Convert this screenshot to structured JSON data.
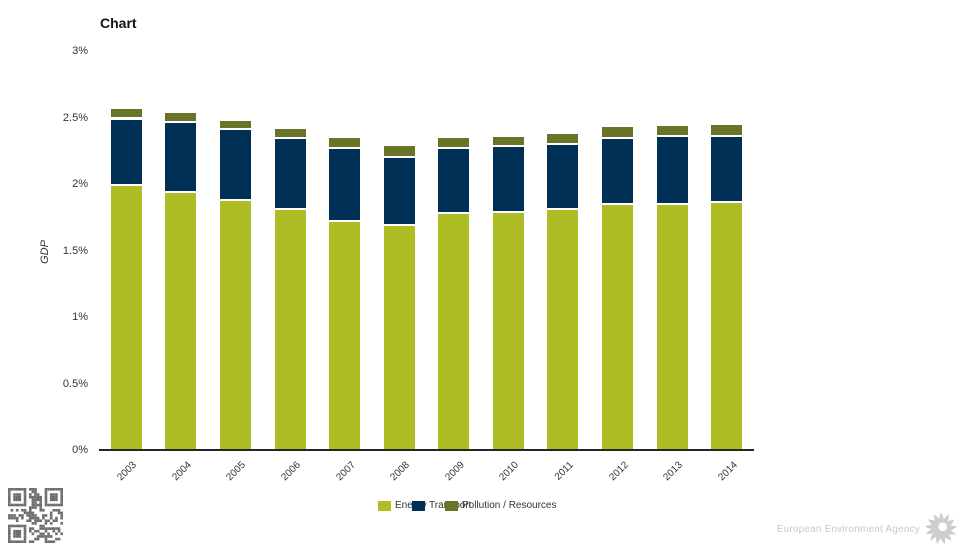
{
  "title": "Chart",
  "y_axis_title": "GDP",
  "footer": {
    "agency": "European Environment Agency"
  },
  "chart_data": {
    "type": "bar",
    "stacked": true,
    "title": "Chart",
    "xlabel": "",
    "ylabel": "GDP",
    "ylim": [
      0,
      3
    ],
    "grid": false,
    "legend_position": "bottom",
    "categories": [
      "2003",
      "2004",
      "2005",
      "2006",
      "2007",
      "2008",
      "2009",
      "2010",
      "2011",
      "2012",
      "2013",
      "2014"
    ],
    "yticks": [
      {
        "value": 0,
        "label": "0%"
      },
      {
        "value": 0.5,
        "label": "0.5%"
      },
      {
        "value": 1,
        "label": "1%"
      },
      {
        "value": 1.5,
        "label": "1.5%"
      },
      {
        "value": 2,
        "label": "2%"
      },
      {
        "value": 2.5,
        "label": "2.5%"
      },
      {
        "value": 3,
        "label": "3%"
      }
    ],
    "series": [
      {
        "name": "Energy",
        "color": "#aebd24",
        "values": [
          2.0,
          1.95,
          1.89,
          1.82,
          1.73,
          1.7,
          1.79,
          1.8,
          1.82,
          1.86,
          1.86,
          1.87
        ]
      },
      {
        "name": "Transport",
        "color": "#003056",
        "values": [
          0.5,
          0.52,
          0.53,
          0.53,
          0.55,
          0.51,
          0.49,
          0.49,
          0.49,
          0.49,
          0.51,
          0.5
        ]
      },
      {
        "name": "Pollution / Resources",
        "color": "#6a7426",
        "values": [
          0.08,
          0.08,
          0.07,
          0.08,
          0.08,
          0.09,
          0.08,
          0.08,
          0.08,
          0.09,
          0.08,
          0.09
        ]
      }
    ],
    "stack_totals": [
      2.58,
      2.55,
      2.49,
      2.43,
      2.36,
      2.3,
      2.36,
      2.37,
      2.39,
      2.44,
      2.45,
      2.46
    ]
  },
  "decor": {
    "qr_code": "qr-code",
    "eea_logo": "eea-sun-logo"
  }
}
